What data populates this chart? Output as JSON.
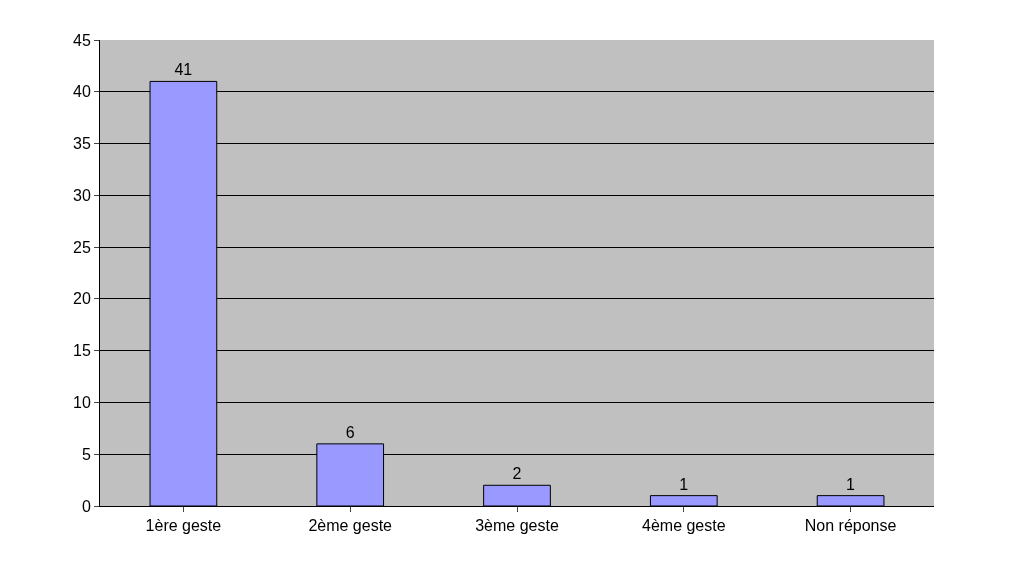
{
  "chart_data": {
    "type": "bar",
    "categories": [
      "1ère geste",
      "2ème geste",
      "3ème geste",
      "4ème geste",
      "Non réponse"
    ],
    "values": [
      41,
      6,
      2,
      1,
      1
    ],
    "color": "#9999ff",
    "data_labels": true,
    "ylim": [
      0,
      45
    ],
    "yticks": [
      0,
      5,
      10,
      15,
      20,
      25,
      30,
      35,
      40,
      45
    ],
    "grid": "y",
    "legend": false
  }
}
